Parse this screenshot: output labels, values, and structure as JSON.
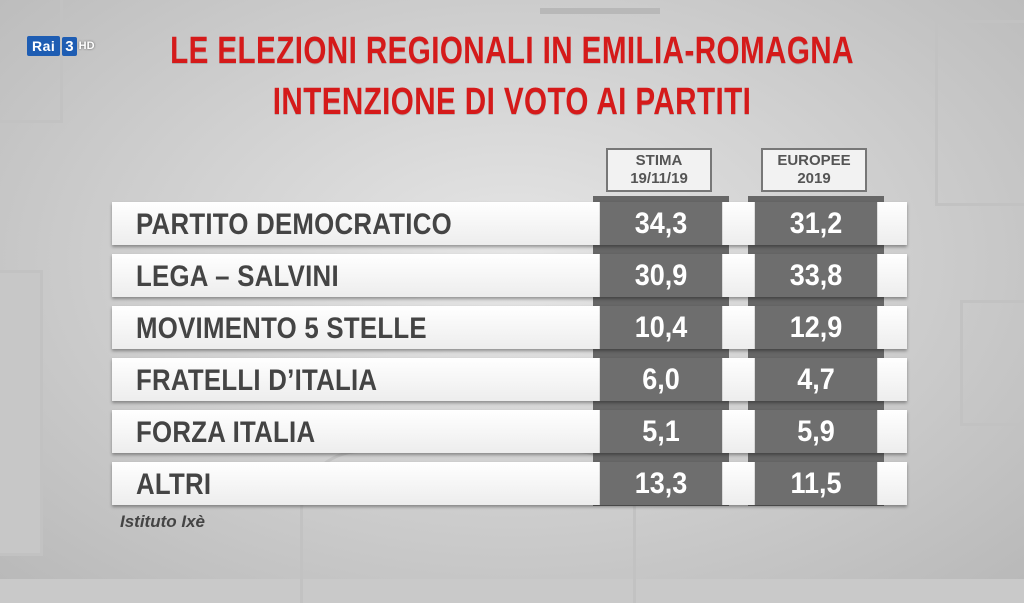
{
  "channel": {
    "rai": "Rai",
    "number": "3",
    "hd": "HD"
  },
  "chart_data": {
    "type": "table",
    "title": "LE ELEZIONI REGIONALI IN EMILIA-ROMAGNA",
    "subtitle": "INTENZIONE DI VOTO AI PARTITI",
    "columns": [
      {
        "line1": "STIMA",
        "line2": "19/11/19"
      },
      {
        "line1": "EUROPEE",
        "line2": "2019"
      }
    ],
    "rows": [
      {
        "party": "PARTITO DEMOCRATICO",
        "stima": "34,3",
        "europee": "31,2"
      },
      {
        "party": "LEGA – SALVINI",
        "stima": "30,9",
        "europee": "33,8"
      },
      {
        "party": "MOVIMENTO 5 STELLE",
        "stima": "10,4",
        "europee": "12,9"
      },
      {
        "party": "FRATELLI D’ITALIA",
        "stima": "6,0",
        "europee": "4,7"
      },
      {
        "party": "FORZA ITALIA",
        "stima": "5,1",
        "europee": "5,9"
      },
      {
        "party": "ALTRI",
        "stima": "13,3",
        "europee": "11,5"
      }
    ],
    "source": "Istituto Ixè"
  }
}
